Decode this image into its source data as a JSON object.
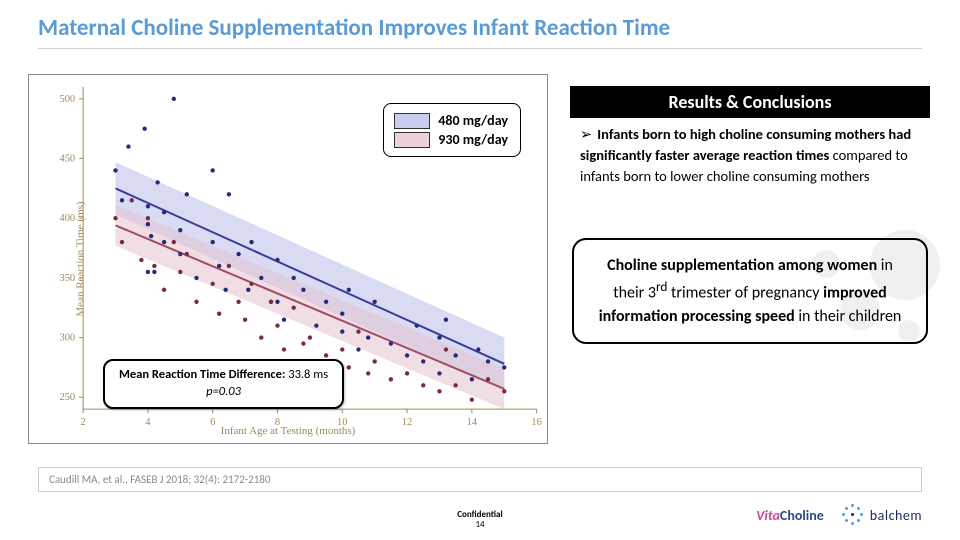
{
  "title": {
    "text": "Maternal Choline Supplementation Improves Infant Reaction Time",
    "color": "#5b9bd5",
    "fontsize": 23
  },
  "chart": {
    "type": "scatter-with-regression-bands",
    "xlabel": "Infant Age at Testing (months)",
    "ylabel": "Mean Reaction Time (ms)",
    "xlim": [
      2,
      16
    ],
    "ylim": [
      240,
      510
    ],
    "xtick_step": 2,
    "ytick_step": 50,
    "ytick_start": 250,
    "ytick_end": 500,
    "axis_color": "#9c8a5a",
    "grid_color": "#e8e4d4",
    "background_color": "#ffffff",
    "series": [
      {
        "name": "480 mg/day",
        "color_line": "#3a3a9a",
        "color_band": "#b8bde8",
        "color_point": "#2a2a7a",
        "line_width": 2,
        "point_radius": 2.2,
        "band_opacity": 0.55,
        "reg_start": {
          "x": 3.0,
          "y": 425
        },
        "reg_end": {
          "x": 15.0,
          "y": 278
        },
        "band_width_ms": 22,
        "points": [
          [
            3.0,
            440
          ],
          [
            3.2,
            415
          ],
          [
            3.4,
            460
          ],
          [
            3.9,
            475
          ],
          [
            4.0,
            410
          ],
          [
            4.0,
            395
          ],
          [
            4.1,
            385
          ],
          [
            4.0,
            355
          ],
          [
            4.2,
            355
          ],
          [
            4.3,
            430
          ],
          [
            4.5,
            380
          ],
          [
            4.5,
            405
          ],
          [
            4.8,
            500
          ],
          [
            5.0,
            390
          ],
          [
            5.0,
            370
          ],
          [
            5.2,
            420
          ],
          [
            5.5,
            350
          ],
          [
            6.0,
            380
          ],
          [
            6.0,
            440
          ],
          [
            6.2,
            360
          ],
          [
            6.4,
            340
          ],
          [
            6.5,
            420
          ],
          [
            6.8,
            370
          ],
          [
            7.1,
            340
          ],
          [
            7.2,
            380
          ],
          [
            7.5,
            350
          ],
          [
            7.8,
            330
          ],
          [
            8.0,
            365
          ],
          [
            8.0,
            330
          ],
          [
            8.2,
            315
          ],
          [
            8.5,
            350
          ],
          [
            8.8,
            340
          ],
          [
            9.2,
            310
          ],
          [
            9.5,
            330
          ],
          [
            10.0,
            320
          ],
          [
            10.0,
            305
          ],
          [
            10.2,
            340
          ],
          [
            10.5,
            290
          ],
          [
            10.8,
            300
          ],
          [
            11.0,
            330
          ],
          [
            11.5,
            295
          ],
          [
            12.0,
            285
          ],
          [
            12.3,
            310
          ],
          [
            12.5,
            280
          ],
          [
            13.0,
            300
          ],
          [
            13.0,
            270
          ],
          [
            13.2,
            315
          ],
          [
            13.5,
            285
          ],
          [
            14.0,
            265
          ],
          [
            14.2,
            290
          ],
          [
            14.5,
            280
          ],
          [
            15.0,
            275
          ]
        ]
      },
      {
        "name": "930 mg/day",
        "color_line": "#a04a66",
        "color_band": "#e6c3d0",
        "color_point": "#7a2a44",
        "line_width": 2,
        "point_radius": 2.2,
        "band_opacity": 0.55,
        "reg_start": {
          "x": 3.0,
          "y": 394
        },
        "reg_end": {
          "x": 15.0,
          "y": 257
        },
        "band_width_ms": 17,
        "points": [
          [
            3.0,
            400
          ],
          [
            3.2,
            380
          ],
          [
            3.5,
            415
          ],
          [
            3.8,
            365
          ],
          [
            4.0,
            400
          ],
          [
            4.2,
            360
          ],
          [
            4.5,
            340
          ],
          [
            4.8,
            380
          ],
          [
            5.0,
            355
          ],
          [
            5.2,
            370
          ],
          [
            5.5,
            330
          ],
          [
            6.0,
            345
          ],
          [
            6.2,
            320
          ],
          [
            6.5,
            360
          ],
          [
            6.8,
            330
          ],
          [
            7.0,
            315
          ],
          [
            7.2,
            345
          ],
          [
            7.5,
            300
          ],
          [
            7.8,
            330
          ],
          [
            8.0,
            310
          ],
          [
            8.2,
            290
          ],
          [
            8.5,
            325
          ],
          [
            8.8,
            295
          ],
          [
            9.0,
            300
          ],
          [
            9.5,
            285
          ],
          [
            10.0,
            290
          ],
          [
            10.2,
            275
          ],
          [
            10.5,
            305
          ],
          [
            10.8,
            270
          ],
          [
            11.0,
            280
          ],
          [
            11.5,
            265
          ],
          [
            12.0,
            270
          ],
          [
            12.5,
            260
          ],
          [
            13.0,
            255
          ],
          [
            13.2,
            290
          ],
          [
            13.5,
            260
          ],
          [
            14.0,
            248
          ],
          [
            14.5,
            265
          ],
          [
            15.0,
            255
          ]
        ]
      }
    ],
    "legend": {
      "items": [
        {
          "label": "480 mg/day",
          "fill": "#c9cded",
          "stroke": "#3a3a9a"
        },
        {
          "label": "930 mg/day",
          "fill": "#ecd1db",
          "stroke": "#a04a66"
        }
      ]
    },
    "annotation": {
      "line1a": "Mean Reaction Time Difference:",
      "line1b": " 33.8 ms",
      "line2": "p=0.03"
    }
  },
  "results": {
    "header": "Results & Conclusions",
    "bullet_bold": "Infants born to high choline consuming mothers had significantly faster average reaction times",
    "bullet_rest": " compared to infants born to lower choline consuming mothers"
  },
  "callout": {
    "p1a": "Choline supplementation among women",
    "p1b": " in their 3",
    "p1sup": "rd",
    "p1c": " trimester of pregnancy ",
    "p2a": "improved information processing speed",
    "p2b": " in their children"
  },
  "reference": "Caudill MA, et al., FASEB J 2018; 32(4): 2172-2180",
  "footer": {
    "confidential": "Confidential",
    "page": "14"
  },
  "logos": {
    "vc_vita": "Vita",
    "vc_choline": "Choline",
    "bc": "balchem"
  }
}
